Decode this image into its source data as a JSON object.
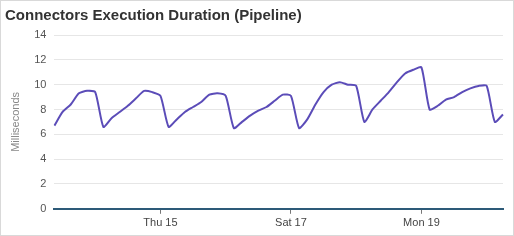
{
  "chart_data": {
    "type": "line",
    "title": "Connectors Execution Duration (Pipeline)",
    "y_label": "Milliseconds",
    "categories": [
      null,
      null,
      null,
      null,
      null,
      null,
      null,
      null,
      null,
      null,
      null,
      null,
      null,
      "Thu 15",
      null,
      null,
      null,
      null,
      null,
      null,
      null,
      null,
      null,
      null,
      null,
      null,
      null,
      null,
      null,
      "Sat 17",
      null,
      null,
      null,
      null,
      null,
      null,
      null,
      null,
      null,
      null,
      null,
      null,
      null,
      null,
      null,
      "Mon 19",
      null,
      null,
      null,
      null,
      null,
      null,
      null,
      null,
      null,
      null
    ],
    "values": [
      6.7,
      7.8,
      8.4,
      9.3,
      9.5,
      9.4,
      6.6,
      7.3,
      7.8,
      8.3,
      8.9,
      9.5,
      9.4,
      9.1,
      6.6,
      7.2,
      7.8,
      8.2,
      8.6,
      9.2,
      9.3,
      9.1,
      6.5,
      7.0,
      7.5,
      7.9,
      8.2,
      8.7,
      9.2,
      9.1,
      6.5,
      7.2,
      8.4,
      9.4,
      10.0,
      10.2,
      10.0,
      9.9,
      7.0,
      8.0,
      8.7,
      9.4,
      10.2,
      10.9,
      11.2,
      11.4,
      8.0,
      8.3,
      8.8,
      9.0,
      9.4,
      9.7,
      9.9,
      9.9,
      7.0,
      7.6
    ],
    "color": "#5b4cb8",
    "ylim": [
      0,
      14
    ],
    "yticks": [
      0,
      2,
      4,
      6,
      8,
      10,
      12,
      14
    ],
    "grid": true
  }
}
